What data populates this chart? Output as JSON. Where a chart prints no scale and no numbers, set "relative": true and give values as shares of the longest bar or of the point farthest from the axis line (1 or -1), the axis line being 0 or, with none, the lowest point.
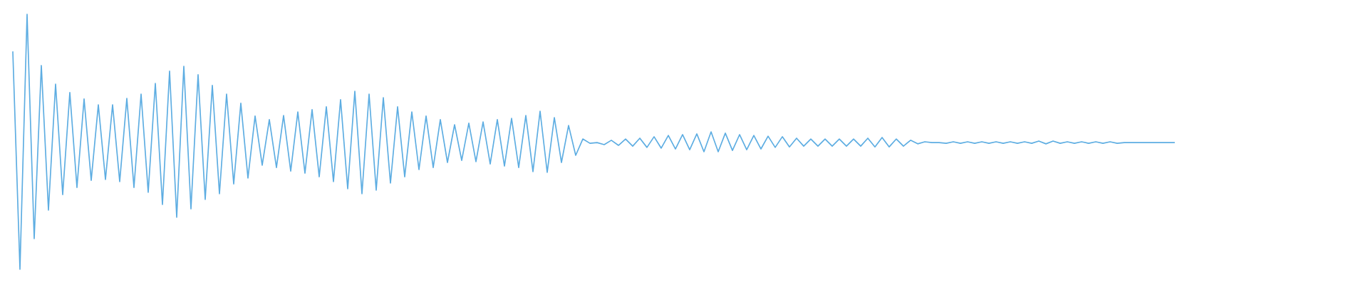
{
  "chart_data": {
    "type": "line",
    "relative": true,
    "color": "#5dade2",
    "categories": [
      null,
      null,
      null,
      null,
      null,
      null,
      null,
      null,
      null,
      null,
      null,
      null,
      null,
      null,
      null,
      null,
      null,
      null,
      null,
      null,
      null,
      null,
      null,
      null,
      null,
      null,
      null,
      null,
      null,
      null,
      null,
      null,
      null,
      null,
      null,
      null,
      null,
      null,
      null,
      null,
      null,
      null,
      null,
      null,
      null,
      null,
      null,
      null,
      null,
      null,
      null,
      null,
      null,
      null,
      null,
      null,
      null,
      null,
      null,
      null,
      null,
      null,
      null,
      null,
      null,
      null,
      null,
      null,
      null,
      null,
      null,
      null,
      null,
      null,
      null,
      null,
      null,
      null,
      null,
      null,
      null,
      null,
      null,
      null,
      null,
      null,
      null,
      null,
      null,
      null,
      null,
      null,
      null,
      null,
      null,
      null,
      null,
      null,
      null,
      null,
      null,
      null,
      null,
      null,
      null,
      null,
      null,
      null,
      null,
      null,
      null,
      null,
      null,
      null,
      null,
      null,
      null,
      null,
      null,
      null,
      null,
      null,
      null,
      null,
      null,
      null,
      null,
      null,
      null,
      null,
      null,
      null,
      null,
      null,
      null,
      null,
      null,
      null,
      null,
      null,
      null,
      null,
      null,
      null,
      null,
      null,
      null,
      null,
      null,
      null,
      null,
      null,
      null,
      null,
      null,
      null,
      null,
      null,
      null,
      null,
      null,
      null,
      null,
      null
    ],
    "values": [
      0.852,
      0.0,
      1.0,
      0.12,
      0.799,
      0.232,
      0.726,
      0.293,
      0.693,
      0.321,
      0.668,
      0.349,
      0.645,
      0.352,
      0.645,
      0.344,
      0.67,
      0.321,
      0.687,
      0.302,
      0.729,
      0.254,
      0.777,
      0.204,
      0.796,
      0.237,
      0.763,
      0.274,
      0.721,
      0.296,
      0.687,
      0.335,
      0.651,
      0.358,
      0.601,
      0.408,
      0.587,
      0.399,
      0.603,
      0.385,
      0.617,
      0.377,
      0.626,
      0.363,
      0.637,
      0.344,
      0.665,
      0.316,
      0.698,
      0.296,
      0.687,
      0.31,
      0.673,
      0.338,
      0.637,
      0.363,
      0.617,
      0.391,
      0.601,
      0.399,
      0.587,
      0.419,
      0.567,
      0.427,
      0.573,
      0.422,
      0.578,
      0.413,
      0.587,
      0.405,
      0.592,
      0.399,
      0.603,
      0.383,
      0.62,
      0.38,
      0.595,
      0.419,
      0.564,
      0.447,
      0.511,
      0.494,
      0.497,
      0.489,
      0.506,
      0.486,
      0.511,
      0.483,
      0.514,
      0.478,
      0.52,
      0.475,
      0.525,
      0.472,
      0.528,
      0.469,
      0.531,
      0.461,
      0.539,
      0.461,
      0.534,
      0.466,
      0.528,
      0.469,
      0.525,
      0.472,
      0.522,
      0.478,
      0.52,
      0.48,
      0.514,
      0.483,
      0.511,
      0.483,
      0.511,
      0.483,
      0.511,
      0.483,
      0.511,
      0.483,
      0.514,
      0.48,
      0.517,
      0.48,
      0.511,
      0.483,
      0.506,
      0.492,
      0.5,
      0.497,
      0.497,
      0.494,
      0.5,
      0.494,
      0.5,
      0.494,
      0.5,
      0.494,
      0.5,
      0.494,
      0.5,
      0.494,
      0.5,
      0.494,
      0.503,
      0.492,
      0.503,
      0.494,
      0.5,
      0.494,
      0.5,
      0.494,
      0.5,
      0.494,
      0.5,
      0.494,
      0.497,
      0.497,
      0.497,
      0.497,
      0.497,
      0.497,
      0.497,
      0.497
    ]
  }
}
